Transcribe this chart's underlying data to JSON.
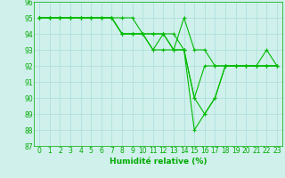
{
  "x": [
    0,
    1,
    2,
    3,
    4,
    5,
    6,
    7,
    8,
    9,
    10,
    11,
    12,
    13,
    14,
    15,
    16,
    17,
    18,
    19,
    20,
    21,
    22,
    23
  ],
  "series": [
    [
      95,
      95,
      95,
      95,
      95,
      95,
      95,
      95,
      95,
      95,
      94,
      94,
      94,
      93,
      95,
      93,
      93,
      92,
      92,
      92,
      92,
      92,
      93,
      92
    ],
    [
      95,
      95,
      95,
      95,
      95,
      95,
      95,
      95,
      94,
      94,
      94,
      94,
      94,
      94,
      93,
      90,
      92,
      92,
      92,
      92,
      92,
      92,
      92,
      92
    ],
    [
      95,
      95,
      95,
      95,
      95,
      95,
      95,
      95,
      94,
      94,
      94,
      93,
      94,
      93,
      93,
      90,
      89,
      90,
      92,
      92,
      92,
      92,
      92,
      92
    ],
    [
      95,
      95,
      95,
      95,
      95,
      95,
      95,
      95,
      94,
      94,
      94,
      93,
      93,
      93,
      93,
      88,
      89,
      90,
      92,
      92,
      92,
      92,
      92,
      92
    ]
  ],
  "line_color": "#00bb00",
  "marker": "+",
  "markersize": 3,
  "linewidth": 0.8,
  "bg_color": "#cff0eb",
  "grid_color": "#aadddd",
  "tick_color": "#00aa00",
  "label_color": "#00aa00",
  "xlabel": "Humidité relative (%)",
  "ylim": [
    87,
    96
  ],
  "xlim": [
    -0.5,
    23.5
  ],
  "yticks": [
    87,
    88,
    89,
    90,
    91,
    92,
    93,
    94,
    95,
    96
  ],
  "xticks": [
    0,
    1,
    2,
    3,
    4,
    5,
    6,
    7,
    8,
    9,
    10,
    11,
    12,
    13,
    14,
    15,
    16,
    17,
    18,
    19,
    20,
    21,
    22,
    23
  ],
  "xlabel_fontsize": 6.5,
  "tick_fontsize": 5.5
}
